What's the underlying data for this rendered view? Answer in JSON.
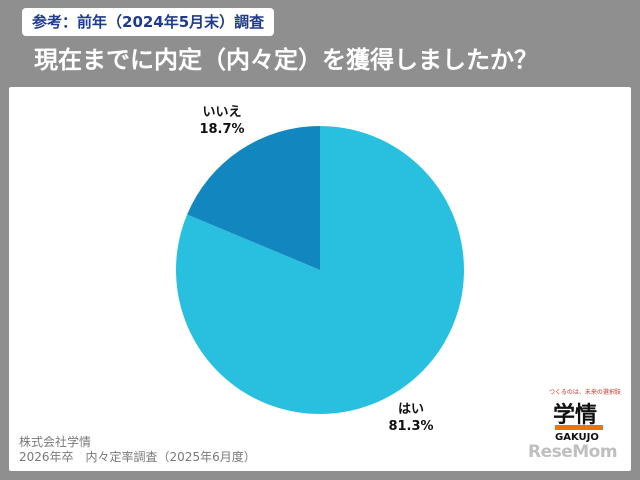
{
  "header": {
    "tag": "参考：前年（2024年5月末）調査",
    "title": "現在までに内定（内々定）を獲得しましたか？"
  },
  "chart_data": {
    "type": "pie",
    "title": "",
    "slices": [
      {
        "label": "はい",
        "value": 81.3,
        "value_text": "81.3%",
        "color": "#29c0e0"
      },
      {
        "label": "いいえ",
        "value": 18.7,
        "value_text": "18.7%",
        "color": "#1287bf"
      }
    ]
  },
  "source": {
    "line1": "株式会社学情",
    "line2": "2026年卒　内々定率調査（2025年6月度）"
  },
  "logo": {
    "tagline": "つくるのは、未来の選択肢",
    "mark": "学情",
    "sub": "GAKUJO"
  },
  "watermark": "ReseMom"
}
